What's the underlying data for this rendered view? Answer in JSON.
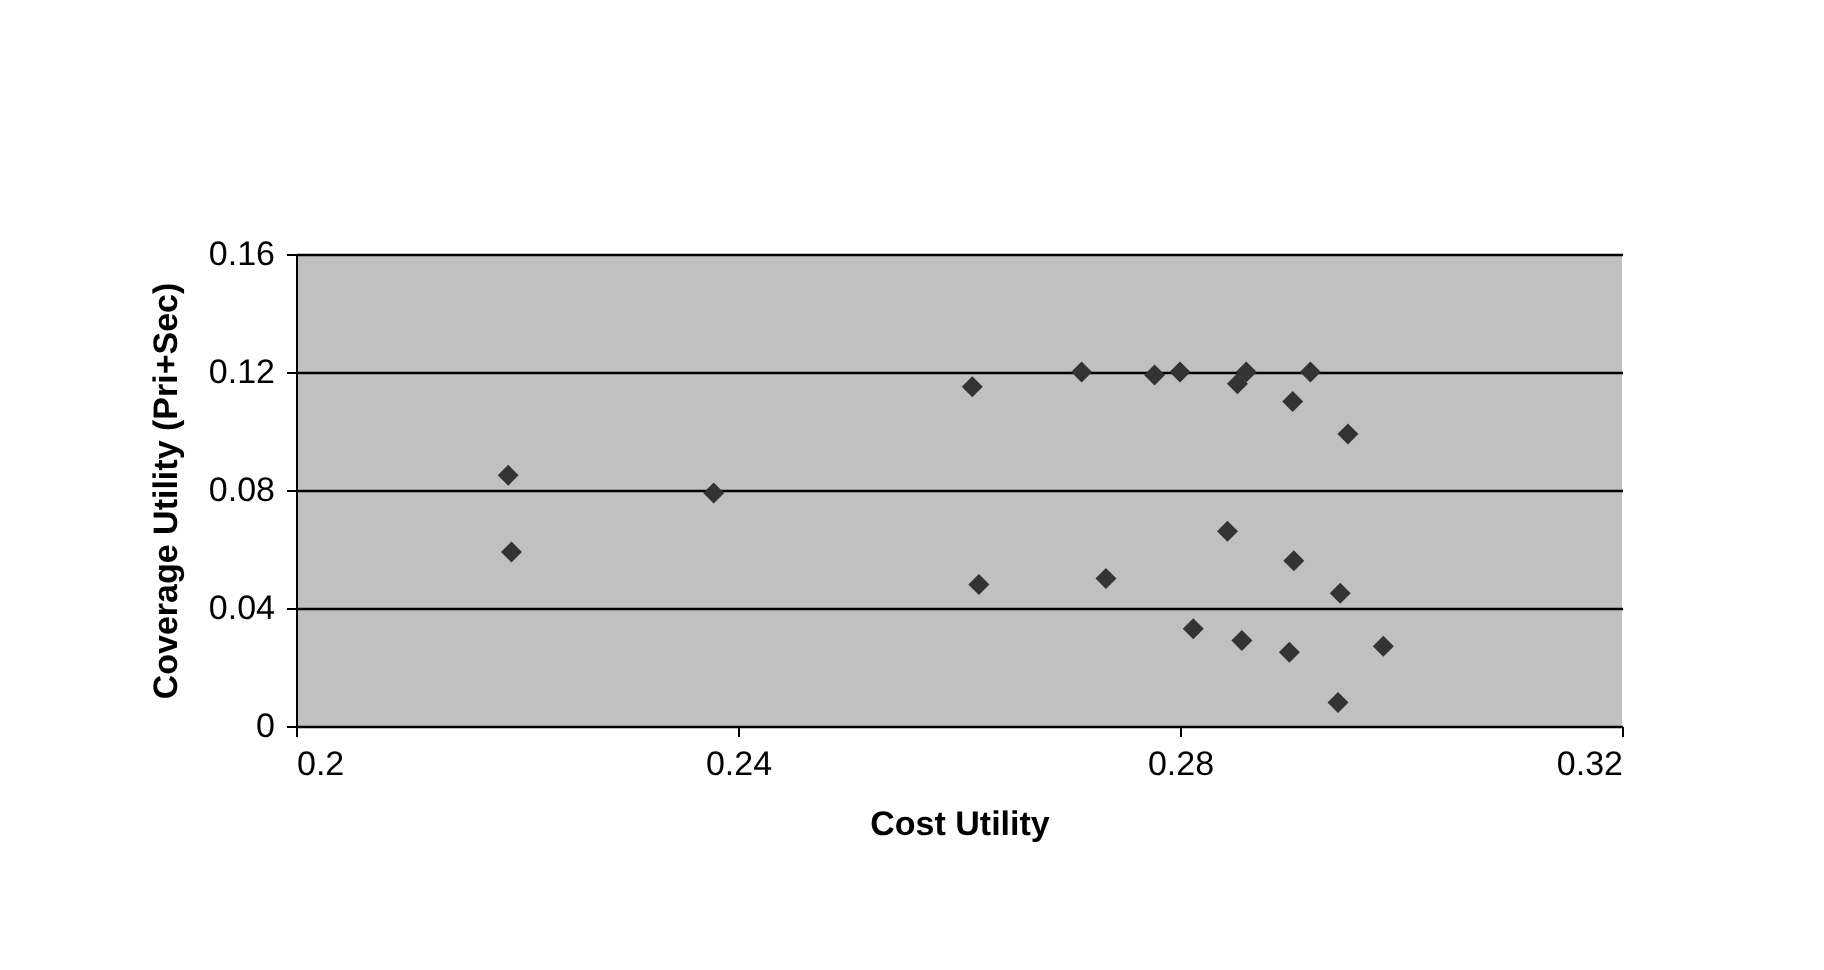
{
  "chart_data": {
    "type": "scatter",
    "xlabel": "Cost Utility",
    "ylabel": "Coverage Utility (Pri+Sec)",
    "x": [
      0.2192,
      0.2195,
      0.2378,
      0.2612,
      0.2618,
      0.2711,
      0.2733,
      0.2777,
      0.28,
      0.2812,
      0.2843,
      0.2852,
      0.286,
      0.2856,
      0.2903,
      0.2902,
      0.2899,
      0.2918,
      0.2952,
      0.2945,
      0.2943,
      0.2984
    ],
    "values": [
      0.085,
      0.059,
      0.079,
      0.115,
      0.048,
      0.12,
      0.05,
      0.119,
      0.12,
      0.033,
      0.066,
      0.116,
      0.12,
      0.029,
      0.056,
      0.11,
      0.025,
      0.12,
      0.099,
      0.045,
      0.008,
      0.027
    ],
    "color": "#333333",
    "marker": "diamond",
    "xlim": [
      0.2,
      0.32
    ],
    "xticks": [
      0.2,
      0.24,
      0.28,
      0.32
    ],
    "ylim": [
      0,
      0.16
    ],
    "yticks": [
      0,
      0.04,
      0.08,
      0.12,
      0.16
    ],
    "grid": "y"
  }
}
